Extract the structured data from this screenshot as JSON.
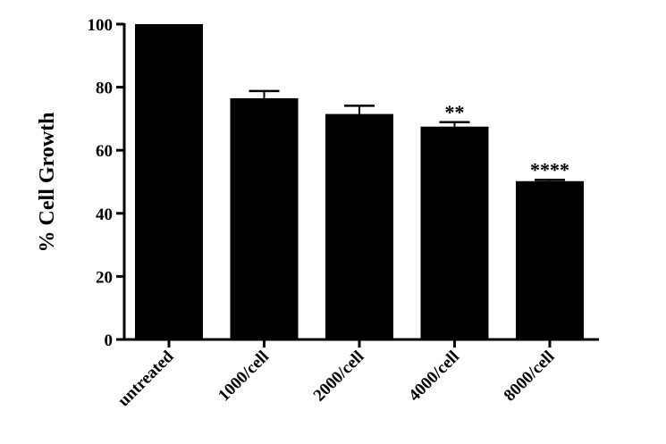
{
  "chart_data": {
    "type": "bar",
    "title": "",
    "xlabel": "",
    "ylabel": "% Cell Growth",
    "categories": [
      "untreated",
      "1000/cell",
      "2000/cell",
      "4000/cell",
      "8000/cell"
    ],
    "values": [
      100,
      76.5,
      71.5,
      67.5,
      50.2
    ],
    "errors": [
      0,
      2.3,
      2.6,
      1.4,
      0.4
    ],
    "annotations": [
      "",
      "",
      "",
      "**",
      "****"
    ],
    "ylim": [
      0,
      100
    ],
    "yticks": [
      0,
      20,
      40,
      60,
      80,
      100
    ],
    "grid": false,
    "bar_color": "#000000"
  }
}
